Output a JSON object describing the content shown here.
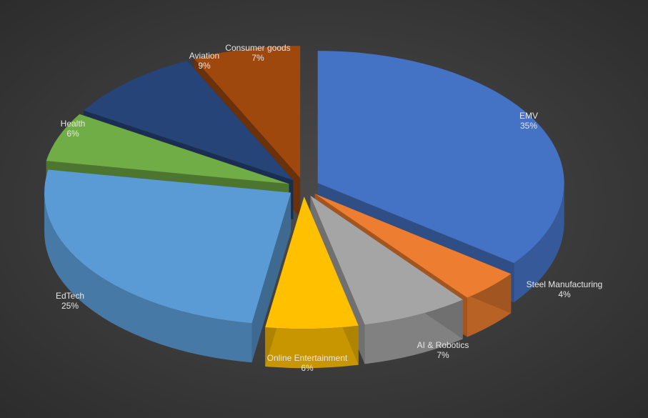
{
  "chart_data": {
    "type": "pie",
    "title": "",
    "labels_show": "category and percentage",
    "style": "3D exploded pie",
    "slices": [
      {
        "label": "EMV",
        "value": 35,
        "display": "35%",
        "color": "#4472C4"
      },
      {
        "label": "Steel Manufacturing",
        "value": 4,
        "display": "4%",
        "color": "#ED7D31"
      },
      {
        "label": "AI & Robotics",
        "value": 7,
        "display": "7%",
        "color": "#A5A5A5"
      },
      {
        "label": "Online Entertainment",
        "value": 6,
        "display": "6%",
        "color": "#FFC000"
      },
      {
        "label": "EdTech",
        "value": 25,
        "display": "25%",
        "color": "#5B9BD5"
      },
      {
        "label": "Health",
        "value": 6,
        "display": "6%",
        "color": "#70AD47"
      },
      {
        "label": "Aviation",
        "value": 9,
        "display": "9%",
        "color": "#264478"
      },
      {
        "label": "Consumer goods",
        "value": 7,
        "display": "7%",
        "color": "#9E480E"
      }
    ]
  }
}
